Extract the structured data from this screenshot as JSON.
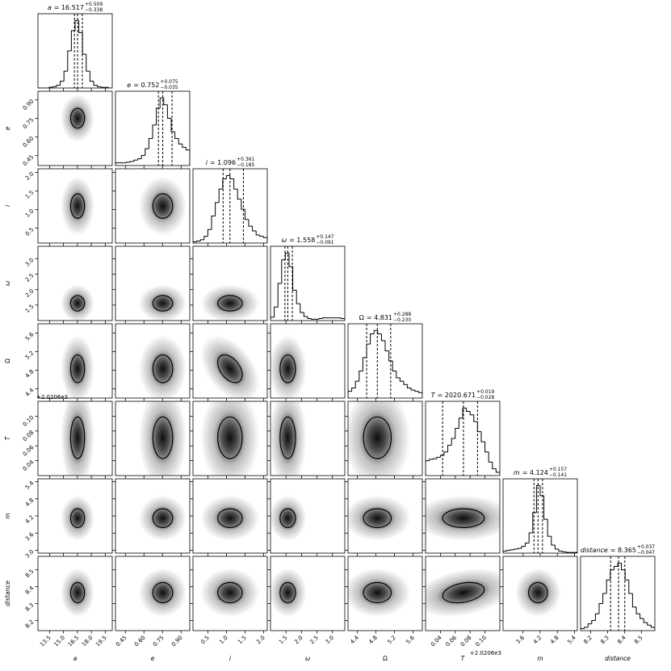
{
  "chart_data": {
    "type": "corner",
    "hist_ylim": [
      0,
      1.1
    ],
    "correlations": [
      {
        "x": 2,
        "y": 4,
        "rho": -0.45
      },
      {
        "x": 5,
        "y": 7,
        "rho": 0.3
      }
    ],
    "params": [
      {
        "label": "a",
        "italic": true,
        "title_value": "= 16.517",
        "title_plus": "+0.509",
        "title_minus": "−0.338",
        "lim": [
          12.25,
          20.25
        ],
        "ticks": [
          13.5,
          {
            "value": 15,
            "label": "15.0"
          },
          16.5,
          {
            "value": 18,
            "label": "18.0"
          },
          19.5
        ],
        "quantiles": [
          16.179,
          16.517,
          17.026
        ],
        "sigma": 0.75,
        "bins": [
          12.25,
          12.65,
          13.05,
          13.45,
          13.85,
          14.25,
          14.65,
          15.05,
          15.45,
          15.85,
          16.25,
          16.65,
          17.05,
          17.45,
          17.85,
          18.25,
          18.65,
          19.05,
          19.45,
          19.85,
          20.25
        ],
        "counts": [
          0,
          0,
          0,
          0.01,
          0.02,
          0.04,
          0.1,
          0.25,
          0.55,
          0.85,
          1.0,
          0.82,
          0.5,
          0.25,
          0.1,
          0.04,
          0.02,
          0.01,
          0.01,
          0
        ]
      },
      {
        "label": "e",
        "italic": true,
        "title_value": "= 0.752",
        "title_plus": "+0.075",
        "title_minus": "−0.035",
        "lim": [
          0.37,
          0.97
        ],
        "ticks": [
          0.45,
          {
            "value": 0.6,
            "label": "0.60"
          },
          0.75,
          {
            "value": 0.9,
            "label": "0.90"
          }
        ],
        "quantiles": [
          0.717,
          0.752,
          0.827
        ],
        "sigma": 0.08,
        "bins": [
          0.37,
          0.4,
          0.43,
          0.46,
          0.49,
          0.52,
          0.55,
          0.58,
          0.61,
          0.64,
          0.67,
          0.7,
          0.73,
          0.76,
          0.79,
          0.82,
          0.85,
          0.88,
          0.91,
          0.94,
          0.97
        ],
        "counts": [
          0.04,
          0.04,
          0.04,
          0.05,
          0.06,
          0.08,
          0.1,
          0.15,
          0.25,
          0.4,
          0.6,
          0.85,
          1.0,
          0.9,
          0.7,
          0.5,
          0.4,
          0.32,
          0.27,
          0.23
        ]
      },
      {
        "label": "i",
        "italic": true,
        "title_value": "= 1.096",
        "title_plus": "+0.361",
        "title_minus": "−0.185",
        "lim": [
          0.1,
          2.1
        ],
        "ticks": [
          0.5,
          {
            "value": 1,
            "label": "1.0"
          },
          1.5,
          {
            "value": 2,
            "label": "2.0"
          }
        ],
        "quantiles": [
          0.911,
          1.096,
          1.457
        ],
        "sigma": 0.33,
        "bins": [
          0.1,
          0.2,
          0.3,
          0.4,
          0.5,
          0.6,
          0.7,
          0.8,
          0.9,
          1.0,
          1.1,
          1.2,
          1.3,
          1.4,
          1.5,
          1.6,
          1.7,
          1.8,
          1.9,
          2.0,
          2.1
        ],
        "counts": [
          0.02,
          0.03,
          0.05,
          0.1,
          0.2,
          0.4,
          0.6,
          0.8,
          0.95,
          1.0,
          0.95,
          0.8,
          0.65,
          0.5,
          0.35,
          0.25,
          0.18,
          0.12,
          0.1,
          0.08
        ]
      },
      {
        "label": "ω",
        "italic": true,
        "title_value": "= 1.558",
        "title_plus": "+0.147",
        "title_minus": "−0.091",
        "lim": [
          1.0,
          3.4
        ],
        "ticks": [
          1.5,
          {
            "value": 2,
            "label": "2.0"
          },
          2.5,
          {
            "value": 3,
            "label": "3.0"
          }
        ],
        "quantiles": [
          1.467,
          1.558,
          1.705
        ],
        "sigma": 0.25,
        "bins": [
          1.0,
          1.12,
          1.24,
          1.36,
          1.48,
          1.6,
          1.72,
          1.84,
          1.96,
          2.08,
          2.2,
          2.32,
          2.44,
          2.56,
          2.68,
          2.8,
          2.92,
          3.04,
          3.16,
          3.28,
          3.4
        ],
        "counts": [
          0.05,
          0.2,
          0.55,
          0.9,
          1.0,
          0.8,
          0.45,
          0.25,
          0.12,
          0.06,
          0.03,
          0.02,
          0.02,
          0.03,
          0.04,
          0.04,
          0.04,
          0.04,
          0.04,
          0.03
        ]
      },
      {
        "label": "Ω",
        "italic": false,
        "title_value": "= 4.831",
        "title_plus": "+0.288",
        "title_minus": "−0.230",
        "lim": [
          4.2,
          5.8
        ],
        "ticks": [
          4.4,
          4.8,
          5.2,
          5.6
        ],
        "quantiles": [
          4.601,
          4.831,
          5.119
        ],
        "sigma": 0.3,
        "bins": [
          4.2,
          4.28,
          4.36,
          4.44,
          4.52,
          4.6,
          4.68,
          4.76,
          4.84,
          4.92,
          5.0,
          5.08,
          5.16,
          5.24,
          5.32,
          5.4,
          5.48,
          5.56,
          5.64,
          5.72,
          5.8
        ],
        "counts": [
          0.1,
          0.15,
          0.25,
          0.4,
          0.6,
          0.8,
          0.95,
          1.0,
          0.95,
          0.85,
          0.7,
          0.55,
          0.4,
          0.3,
          0.25,
          0.2,
          0.15,
          0.12,
          0.1,
          0.08
        ]
      },
      {
        "label": "T",
        "italic": true,
        "title_value": "= 2020.671",
        "title_plus": "+0.019",
        "title_minus": "−0.028",
        "offset": "+2.0206e3",
        "lim": [
          0.02,
          0.12
        ],
        "ticks": [
          0.04,
          0.06,
          0.08,
          {
            "value": 0.1,
            "label": "0.10"
          }
        ],
        "quantiles": [
          0.043,
          0.071,
          0.09
        ],
        "sigma": 0.028,
        "bins": [
          0.02,
          0.025,
          0.03,
          0.035,
          0.04,
          0.045,
          0.05,
          0.055,
          0.06,
          0.065,
          0.07,
          0.075,
          0.08,
          0.085,
          0.09,
          0.095,
          0.1,
          0.105,
          0.11,
          0.115,
          0.12
        ],
        "counts": [
          0.22,
          0.24,
          0.25,
          0.27,
          0.3,
          0.35,
          0.45,
          0.55,
          0.7,
          0.85,
          1.0,
          0.95,
          0.9,
          0.8,
          0.65,
          0.5,
          0.35,
          0.2,
          0.1,
          0.05
        ]
      },
      {
        "label": "m",
        "italic": true,
        "title_value": "= 4.124",
        "title_plus": "+0.157",
        "title_minus": "−0.141",
        "lim": [
          2.9,
          5.5
        ],
        "xticks": [
          3.6,
          4.2,
          4.8,
          5.4
        ],
        "yticks": [
          {
            "value": 3,
            "label": "3.0"
          },
          3.6,
          4.2,
          4.8,
          5.4
        ],
        "quantiles": [
          3.983,
          4.124,
          4.281
        ],
        "sigma": 0.33,
        "bins": [
          2.9,
          3.03,
          3.16,
          3.29,
          3.42,
          3.55,
          3.68,
          3.81,
          3.94,
          4.07,
          4.2,
          4.33,
          4.46,
          4.59,
          4.72,
          4.85,
          4.98,
          5.11,
          5.24,
          5.37,
          5.5
        ],
        "counts": [
          0.03,
          0.04,
          0.05,
          0.06,
          0.07,
          0.1,
          0.15,
          0.3,
          0.6,
          1.0,
          0.85,
          0.5,
          0.25,
          0.12,
          0.06,
          0.03,
          0.02,
          0.01,
          0.01,
          0.01
        ]
      },
      {
        "label": "distance",
        "italic": true,
        "title_value": "= 8.365",
        "title_plus": "+0.037",
        "title_minus": "−0.047",
        "lim": [
          8.14,
          8.58
        ],
        "ticks": [
          8.2,
          8.3,
          8.4,
          8.5
        ],
        "quantiles": [
          8.318,
          8.365,
          8.402
        ],
        "sigma": 0.06,
        "bins": [
          8.14,
          8.162,
          8.184,
          8.206,
          8.228,
          8.25,
          8.272,
          8.294,
          8.316,
          8.338,
          8.36,
          8.382,
          8.404,
          8.426,
          8.448,
          8.47,
          8.492,
          8.514,
          8.536,
          8.558,
          8.58
        ],
        "counts": [
          0.03,
          0.05,
          0.1,
          0.15,
          0.25,
          0.4,
          0.55,
          0.75,
          0.9,
          0.95,
          1.0,
          0.9,
          0.75,
          0.55,
          0.35,
          0.25,
          0.18,
          0.12,
          0.08,
          0.05
        ]
      }
    ]
  }
}
